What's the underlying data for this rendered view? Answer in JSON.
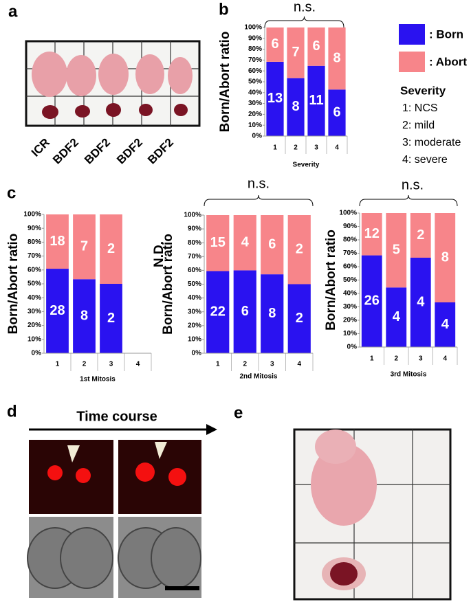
{
  "panel_labels": [
    "a",
    "b",
    "c",
    "d",
    "e"
  ],
  "photo_a_labels": [
    "ICR",
    "BDF2",
    "BDF2",
    "BDF2",
    "BDF2"
  ],
  "time_course": "Time course",
  "chart_data": [
    {
      "type": "bar",
      "stack": "percent",
      "ylabel": "Born/Abort ratio",
      "xlabel": "Severity",
      "annotation": "n.s.",
      "categories": [
        "1",
        "2",
        "3",
        "4"
      ],
      "series": [
        {
          "name": ": Born",
          "color": "#2a12f0",
          "values": [
            13,
            8,
            11,
            6
          ]
        },
        {
          "name": ": Abort",
          "color": "#f7858a",
          "values": [
            6,
            7,
            6,
            8
          ]
        }
      ],
      "legend_note": {
        "title": "Severity",
        "items": [
          "1: NCS",
          "2: mild",
          "3: moderate",
          "4: severe"
        ]
      },
      "ylim": [
        0,
        100
      ],
      "yticks": [
        {
          "value": 0,
          "label": "0%"
        },
        {
          "value": 10,
          "label": "10%"
        },
        {
          "value": 20,
          "label": "20%"
        },
        {
          "value": 30,
          "label": "30%"
        },
        {
          "value": 40,
          "label": "40%"
        },
        {
          "value": 50,
          "label": "50%"
        },
        {
          "value": 60,
          "label": "60%"
        },
        {
          "value": 70,
          "label": "70%"
        },
        {
          "value": 80,
          "label": "80%"
        },
        {
          "value": 90,
          "label": "90%"
        },
        {
          "value": 100,
          "label": "100%"
        }
      ]
    },
    {
      "type": "bar",
      "stack": "percent",
      "ylabel": "Born/Abort ratio",
      "xlabel": "1st Mitosis",
      "annotation": "N.D.",
      "categories": [
        "1",
        "2",
        "3",
        "4"
      ],
      "series": [
        {
          "color": "#2a12f0",
          "values": [
            28,
            8,
            2,
            null
          ]
        },
        {
          "color": "#f7858a",
          "values": [
            18,
            7,
            2,
            null
          ]
        }
      ],
      "ylim": [
        0,
        100
      ],
      "yticks": [
        {
          "value": 0,
          "label": "0%"
        },
        {
          "value": 10,
          "label": "10%"
        },
        {
          "value": 20,
          "label": "20%"
        },
        {
          "value": 30,
          "label": "30%"
        },
        {
          "value": 40,
          "label": "40%"
        },
        {
          "value": 50,
          "label": "50%"
        },
        {
          "value": 60,
          "label": "60%"
        },
        {
          "value": 70,
          "label": "70%"
        },
        {
          "value": 80,
          "label": "80%"
        },
        {
          "value": 90,
          "label": "90%"
        },
        {
          "value": 100,
          "label": "100%"
        }
      ]
    },
    {
      "type": "bar",
      "stack": "percent",
      "ylabel": "Born/Abort ratio",
      "xlabel": "2nd Mitosis",
      "annotation": "n.s.",
      "categories": [
        "1",
        "2",
        "3",
        "4"
      ],
      "series": [
        {
          "color": "#2a12f0",
          "values": [
            22,
            6,
            8,
            2
          ]
        },
        {
          "color": "#f7858a",
          "values": [
            15,
            4,
            6,
            2
          ]
        }
      ],
      "ylim": [
        0,
        100
      ],
      "yticks": [
        {
          "value": 0,
          "label": "0%"
        },
        {
          "value": 10,
          "label": "10%"
        },
        {
          "value": 20,
          "label": "20%"
        },
        {
          "value": 30,
          "label": "30%"
        },
        {
          "value": 40,
          "label": "40%"
        },
        {
          "value": 50,
          "label": "50%"
        },
        {
          "value": 60,
          "label": "60%"
        },
        {
          "value": 70,
          "label": "70%"
        },
        {
          "value": 80,
          "label": "80%"
        },
        {
          "value": 90,
          "label": "90%"
        },
        {
          "value": 100,
          "label": "100%"
        }
      ]
    },
    {
      "type": "bar",
      "stack": "percent",
      "ylabel": "Born/Abort ratio",
      "xlabel": "3rd Mitosis",
      "annotation": "n.s.",
      "categories": [
        "1",
        "2",
        "3",
        "4"
      ],
      "series": [
        {
          "color": "#2a12f0",
          "values": [
            26,
            4,
            4,
            4
          ]
        },
        {
          "color": "#f7858a",
          "values": [
            12,
            5,
            2,
            8
          ]
        }
      ],
      "ylim": [
        0,
        100
      ],
      "yticks": [
        {
          "value": 0,
          "label": "0%"
        },
        {
          "value": 10,
          "label": "10%"
        },
        {
          "value": 20,
          "label": "20%"
        },
        {
          "value": 30,
          "label": "30%"
        },
        {
          "value": 40,
          "label": "40%"
        },
        {
          "value": 50,
          "label": "50%"
        },
        {
          "value": 60,
          "label": "60%"
        },
        {
          "value": 70,
          "label": "70%"
        },
        {
          "value": 80,
          "label": "80%"
        },
        {
          "value": 90,
          "label": "90%"
        },
        {
          "value": 100,
          "label": "100%"
        }
      ]
    }
  ]
}
